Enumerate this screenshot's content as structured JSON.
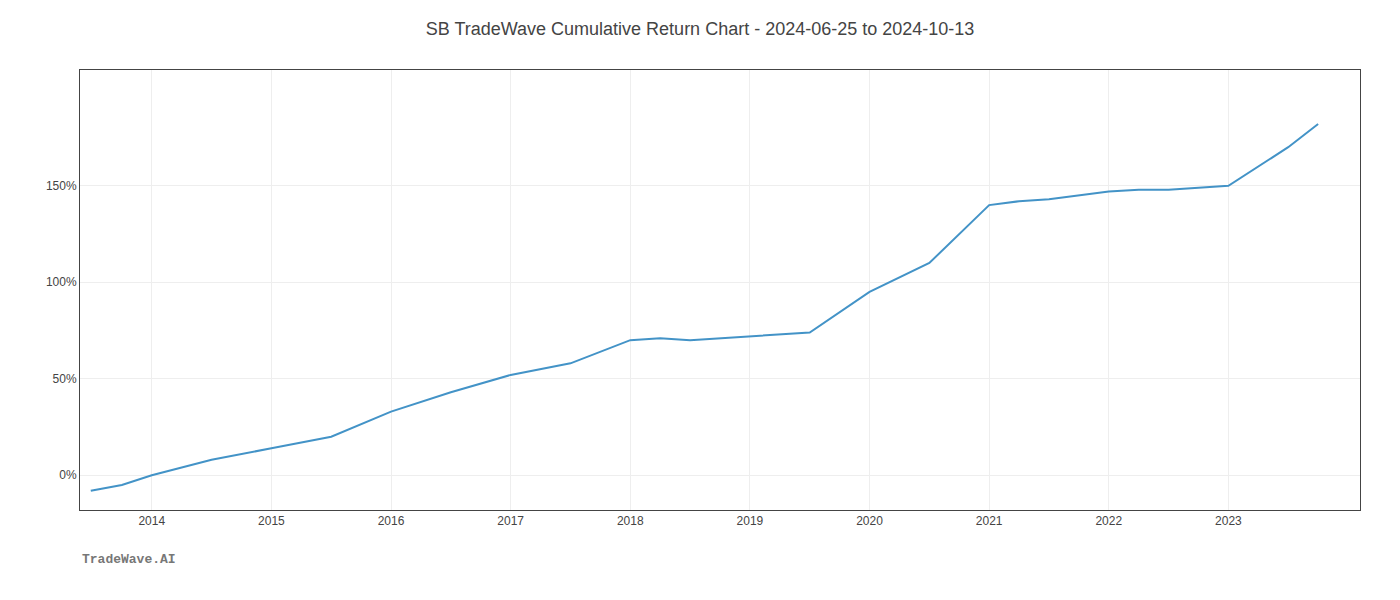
{
  "chart_data": {
    "type": "line",
    "title": "SB TradeWave Cumulative Return Chart - 2024-06-25 to 2024-10-13",
    "annotations": [
      "TradeWave.AI"
    ],
    "x": [
      2013.49,
      2013.75,
      2014.0,
      2014.5,
      2015.0,
      2015.5,
      2016.0,
      2016.5,
      2017.0,
      2017.5,
      2018.0,
      2018.25,
      2018.5,
      2019.0,
      2019.25,
      2019.5,
      2020.0,
      2020.5,
      2021.0,
      2021.25,
      2021.5,
      2022.0,
      2022.25,
      2022.5,
      2022.75,
      2023.0,
      2023.5,
      2023.75
    ],
    "values": [
      -8,
      -5,
      0,
      8,
      14,
      20,
      33,
      43,
      52,
      58,
      70,
      71,
      70,
      72,
      73,
      74,
      95,
      110,
      140,
      142,
      143,
      147,
      148,
      148,
      149,
      150,
      170,
      182
    ],
    "color": "#4393c7",
    "xlim": [
      2013.4,
      2024.1
    ],
    "xticks": [
      2014,
      2015,
      2016,
      2017,
      2018,
      2019,
      2020,
      2021,
      2022,
      2023
    ],
    "ylim": [
      -18,
      210
    ],
    "yticks": [
      {
        "value": 0,
        "label": "0%"
      },
      {
        "value": 50,
        "label": "50%"
      },
      {
        "value": 100,
        "label": "100%"
      },
      {
        "value": 150,
        "label": "150%"
      }
    ],
    "grid": true
  }
}
